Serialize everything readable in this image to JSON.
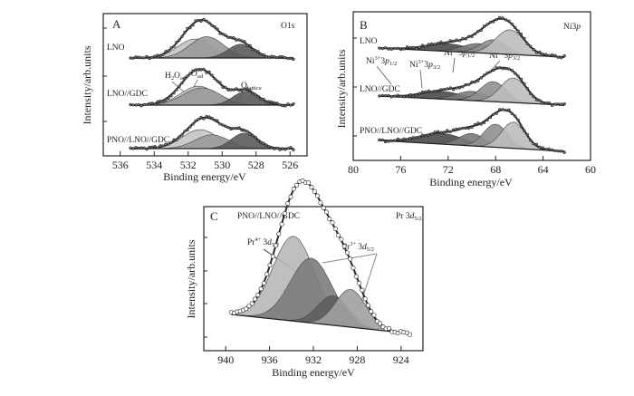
{
  "chart_data": [
    {
      "id": "A",
      "type": "area",
      "panel_label": "A",
      "title": "O1s",
      "xlabel": "Binding energy/eV",
      "ylabel": "Intensity/arb.units",
      "xlim": [
        537,
        525
      ],
      "x_ticks": [
        536,
        534,
        532,
        530,
        528,
        526
      ],
      "x_reversed": true,
      "samples": [
        "LNO",
        "LNO//GDC",
        "PNO//LNO//GDC"
      ],
      "annotations": [
        {
          "base": "H",
          "sub1": "2",
          "mid": "O",
          "sub2": "ad"
        },
        {
          "base": "O",
          "sub2": "ad"
        },
        {
          "base": "O",
          "sub2": "lattice"
        }
      ],
      "series": [
        {
          "sample": "LNO",
          "components": [
            {
              "name": "H2Oad",
              "center": 531.6,
              "height": 0.55,
              "width": 1.0,
              "shade": "#c4c4c4"
            },
            {
              "name": "Oad",
              "center": 530.9,
              "height": 0.62,
              "width": 1.0,
              "shade": "#9a9a9a"
            },
            {
              "name": "Olattice",
              "center": 528.9,
              "height": 0.4,
              "width": 0.75,
              "shade": "#5a5a5a"
            }
          ]
        },
        {
          "sample": "LNO//GDC",
          "components": [
            {
              "name": "H2Oad",
              "center": 531.4,
              "height": 0.55,
              "width": 1.05,
              "shade": "#c4c4c4"
            },
            {
              "name": "Oad",
              "center": 531.2,
              "height": 0.5,
              "width": 1.1,
              "shade": "#9a9a9a"
            },
            {
              "name": "Olattice",
              "center": 528.6,
              "height": 0.4,
              "width": 0.75,
              "shade": "#5a5a5a"
            }
          ]
        },
        {
          "sample": "PNO//LNO//GDC",
          "components": [
            {
              "name": "H2Oad",
              "center": 531.3,
              "height": 0.55,
              "width": 1.05,
              "shade": "#c4c4c4"
            },
            {
              "name": "Oad",
              "center": 530.6,
              "height": 0.4,
              "width": 1.0,
              "shade": "#9a9a9a"
            },
            {
              "name": "Olattice",
              "center": 528.7,
              "height": 0.45,
              "width": 0.75,
              "shade": "#5a5a5a"
            }
          ]
        }
      ]
    },
    {
      "id": "B",
      "type": "area",
      "panel_label": "B",
      "title_base": "Ni3",
      "title_italic": "p",
      "xlabel": "Binding energy/eV",
      "ylabel": "Intensity/arb.units",
      "xlim": [
        80,
        60
      ],
      "x_ticks": [
        80,
        76,
        72,
        68,
        64,
        60
      ],
      "x_reversed": true,
      "samples": [
        "LNO",
        "LNO//GDC",
        "PNO//LNO//GDC"
      ],
      "annotations": [
        {
          "ion": "Ni",
          "charge": "3+",
          "orbital": "3p",
          "sub": "1/2"
        },
        {
          "ion": "Ni",
          "charge": "3+",
          "orbital": "3p",
          "sub": "3/2"
        },
        {
          "ion": "Ni",
          "charge": "2+",
          "orbital": "3p",
          "sub": "1/2"
        },
        {
          "ion": "Ni",
          "charge": "2+",
          "orbital": "3p",
          "sub": "3/2"
        }
      ],
      "series": [
        {
          "sample": "LNO",
          "components": [
            {
              "name": "Ni3+ 3p1/2",
              "center": 72.0,
              "height": 0.25,
              "width": 1.8,
              "shade": "#4a4a4a"
            },
            {
              "name": "Ni3+ 3p3/2",
              "center": 69.5,
              "height": 0.3,
              "width": 1.3,
              "shade": "#7a7a7a"
            },
            {
              "name": "Ni2+ 3p1/2",
              "center": 68.2,
              "height": 0.45,
              "width": 1.1,
              "shade": "#909090"
            },
            {
              "name": "Ni2+ 3p3/2",
              "center": 66.8,
              "height": 0.8,
              "width": 1.2,
              "shade": "#bdbdbd"
            }
          ]
        },
        {
          "sample": "LNO//GDC",
          "components": [
            {
              "name": "Ni3+ 3p1/2",
              "center": 72.5,
              "height": 0.25,
              "width": 1.8,
              "shade": "#4a4a4a"
            },
            {
              "name": "Ni3+ 3p3/2",
              "center": 70.0,
              "height": 0.3,
              "width": 1.3,
              "shade": "#7a7a7a"
            },
            {
              "name": "Ni2+ 3p1/2",
              "center": 68.2,
              "height": 0.65,
              "width": 1.1,
              "shade": "#909090"
            },
            {
              "name": "Ni2+ 3p3/2",
              "center": 66.5,
              "height": 0.8,
              "width": 1.1,
              "shade": "#bdbdbd"
            }
          ]
        },
        {
          "sample": "PNO//LNO//GDC",
          "components": [
            {
              "name": "Ni3+ 3p1/2",
              "center": 72.5,
              "height": 0.35,
              "width": 1.8,
              "shade": "#4a4a4a"
            },
            {
              "name": "Ni3+ 3p3/2",
              "center": 70.0,
              "height": 0.4,
              "width": 1.1,
              "shade": "#7a7a7a"
            },
            {
              "name": "Ni2+ 3p1/2",
              "center": 68.0,
              "height": 0.75,
              "width": 1.0,
              "shade": "#909090"
            },
            {
              "name": "Ni2+ 3p3/2",
              "center": 66.5,
              "height": 0.85,
              "width": 1.0,
              "shade": "#bdbdbd"
            }
          ]
        }
      ]
    },
    {
      "id": "C",
      "type": "area",
      "panel_label": "C",
      "sample": "PNO//LNO//GDC",
      "title_base": "Pr 3",
      "title_italic": "d",
      "title_sub": "5/2",
      "xlabel": "Binding energy/eV",
      "ylabel": "Intensity/arb.units",
      "xlim": [
        942,
        922
      ],
      "x_ticks": [
        940,
        936,
        932,
        928,
        924
      ],
      "x_reversed": true,
      "annotations": [
        {
          "ion": "Pr",
          "charge": "4+",
          "orbital": "3d",
          "sub": "5/2"
        },
        {
          "ion": "Pr",
          "charge": "3+",
          "orbital": "3d",
          "sub": "5/2"
        }
      ],
      "series": [
        {
          "sample": "PNO//LNO//GDC",
          "components": [
            {
              "name": "Pr4+ 3d5/2 (a)",
              "center": 933.8,
              "height": 0.72,
              "width": 1.9,
              "shade": "#b8b8b8"
            },
            {
              "name": "Pr4+ 3d5/2 (b)",
              "center": 932.2,
              "height": 0.55,
              "width": 1.9,
              "shade": "#7c7c7c"
            },
            {
              "name": "Pr3+ 3d5/2 (a)",
              "center": 930.2,
              "height": 0.25,
              "width": 1.4,
              "shade": "#5e5e5e"
            },
            {
              "name": "Pr3+ 3d5/2 (b)",
              "center": 928.6,
              "height": 0.32,
              "width": 1.4,
              "shade": "#a0a0a0"
            }
          ]
        }
      ]
    }
  ]
}
